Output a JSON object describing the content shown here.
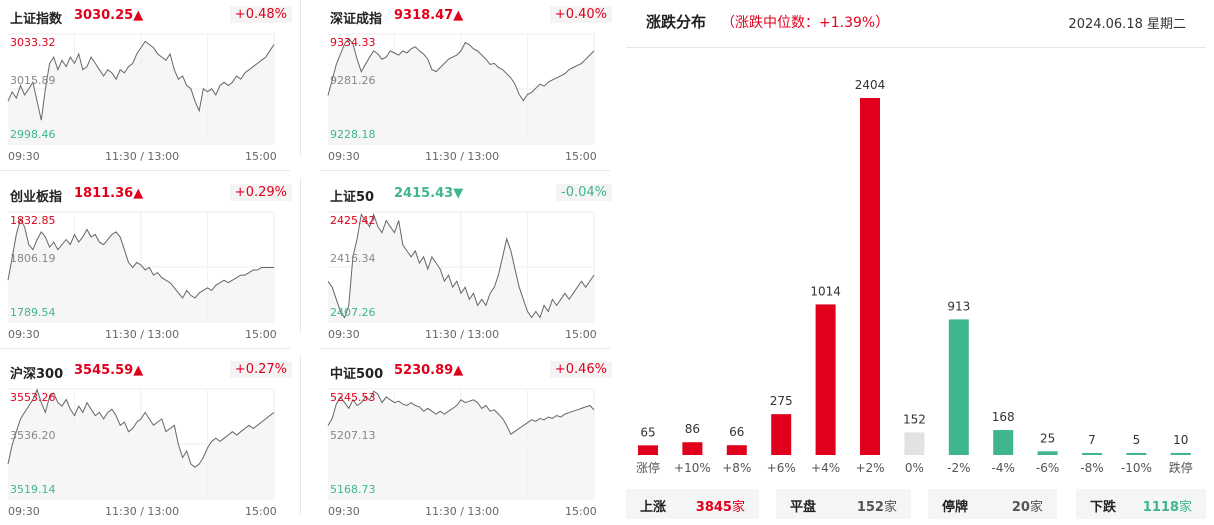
{
  "colors": {
    "up": "#e0001b",
    "down": "#3fb68b",
    "flat": "#e2e2e2",
    "line": "#666666"
  },
  "indices": [
    {
      "name": "上证指数",
      "value": "3030.25",
      "arrow": "▲",
      "change_pct": "+0.48%",
      "dir": "up",
      "y_high": "3033.32",
      "y_mid": "3015.89",
      "y_low": "2998.46",
      "x_start": "09:30",
      "x_mid": "11:30 / 13:00",
      "x_end": "15:00",
      "series": [
        3012,
        3015,
        3013,
        3017,
        3014,
        3016,
        3018,
        3012,
        3006,
        3016,
        3024,
        3026,
        3022,
        3025,
        3023,
        3026,
        3024,
        3027,
        3022,
        3023,
        3026,
        3024,
        3022,
        3020,
        3022,
        3021,
        3019,
        3022,
        3021,
        3023,
        3024,
        3027,
        3029,
        3031,
        3030,
        3029,
        3027,
        3026,
        3025,
        3027,
        3022,
        3019,
        3020,
        3017,
        3016,
        3012,
        3009,
        3016,
        3015,
        3016,
        3014,
        3017,
        3018,
        3017,
        3018,
        3020,
        3019,
        3021,
        3022,
        3023,
        3024,
        3025,
        3026,
        3028,
        3030
      ]
    },
    {
      "name": "深证成指",
      "value": "9318.47",
      "arrow": "▲",
      "change_pct": "+0.40%",
      "dir": "up",
      "y_high": "9334.33",
      "y_mid": "9281.26",
      "y_low": "9228.18",
      "x_start": "09:30",
      "x_mid": "11:30 / 13:00",
      "x_end": "15:00",
      "series": [
        9275,
        9290,
        9305,
        9315,
        9325,
        9330,
        9325,
        9310,
        9298,
        9305,
        9312,
        9318,
        9315,
        9310,
        9312,
        9318,
        9316,
        9314,
        9318,
        9316,
        9320,
        9322,
        9318,
        9315,
        9310,
        9300,
        9298,
        9302,
        9306,
        9310,
        9312,
        9314,
        9318,
        9326,
        9324,
        9320,
        9318,
        9314,
        9310,
        9305,
        9306,
        9302,
        9300,
        9296,
        9292,
        9286,
        9276,
        9270,
        9276,
        9278,
        9282,
        9286,
        9284,
        9288,
        9290,
        9292,
        9294,
        9296,
        9300,
        9302,
        9304,
        9306,
        9310,
        9314,
        9318
      ]
    },
    {
      "name": "创业板指",
      "value": "1811.36",
      "arrow": "▲",
      "change_pct": "+0.29%",
      "dir": "up",
      "y_high": "1832.85",
      "y_mid": "1806.19",
      "y_low": "1789.54",
      "x_start": "09:30",
      "x_mid": "11:30 / 13:00",
      "x_end": "15:00",
      "series": [
        1806,
        1815,
        1824,
        1830,
        1827,
        1820,
        1818,
        1822,
        1825,
        1823,
        1819,
        1821,
        1818,
        1820,
        1822,
        1820,
        1824,
        1821,
        1823,
        1826,
        1823,
        1824,
        1821,
        1820,
        1822,
        1824,
        1825,
        1823,
        1818,
        1813,
        1811,
        1813,
        1812,
        1810,
        1811,
        1808,
        1809,
        1807,
        1806,
        1805,
        1803,
        1801,
        1799,
        1802,
        1800,
        1799,
        1801,
        1802,
        1803,
        1802,
        1804,
        1805,
        1806,
        1805,
        1806,
        1807,
        1808,
        1808,
        1809,
        1810,
        1810,
        1811,
        1811,
        1811,
        1811
      ]
    },
    {
      "name": "上证50",
      "value": "2415.43",
      "arrow": "▼",
      "change_pct": "-0.04%",
      "dir": "down",
      "y_high": "2425.42",
      "y_mid": "2416.34",
      "y_low": "2407.26",
      "x_start": "09:30",
      "x_mid": "11:30 / 13:00",
      "x_end": "15:00",
      "series": [
        2414,
        2413,
        2411,
        2409,
        2408,
        2410,
        2418,
        2421,
        2425,
        2424,
        2423,
        2425,
        2423,
        2422,
        2424,
        2423,
        2422,
        2424,
        2420,
        2419,
        2418,
        2419,
        2417,
        2418,
        2416,
        2418,
        2417,
        2416,
        2414,
        2415,
        2413,
        2414,
        2412,
        2413,
        2411,
        2412,
        2410,
        2411,
        2410,
        2412,
        2413,
        2415,
        2418,
        2421,
        2419,
        2416,
        2413,
        2411,
        2409,
        2408,
        2409,
        2408,
        2410,
        2409,
        2411,
        2410,
        2411,
        2412,
        2411,
        2412,
        2413,
        2414,
        2413,
        2414,
        2415
      ]
    },
    {
      "name": "沪深300",
      "value": "3545.59",
      "arrow": "▲",
      "change_pct": "+0.27%",
      "dir": "up",
      "y_high": "3553.26",
      "y_mid": "3536.20",
      "y_low": "3519.14",
      "x_start": "09:30",
      "x_mid": "11:30 / 13:00",
      "x_end": "15:00",
      "series": [
        3530,
        3536,
        3540,
        3544,
        3546,
        3548,
        3550,
        3553,
        3549,
        3546,
        3551,
        3552,
        3549,
        3548,
        3550,
        3547,
        3545,
        3548,
        3546,
        3549,
        3547,
        3545,
        3546,
        3544,
        3546,
        3547,
        3545,
        3542,
        3543,
        3540,
        3541,
        3543,
        3544,
        3546,
        3544,
        3542,
        3543,
        3544,
        3540,
        3541,
        3542,
        3536,
        3532,
        3534,
        3530,
        3529,
        3530,
        3532,
        3535,
        3537,
        3538,
        3537,
        3538,
        3539,
        3540,
        3539,
        3540,
        3541,
        3542,
        3541,
        3542,
        3543,
        3544,
        3545,
        3546
      ]
    },
    {
      "name": "中证500",
      "value": "5230.89",
      "arrow": "▲",
      "change_pct": "+0.46%",
      "dir": "up",
      "y_high": "5245.53",
      "y_mid": "5207.13",
      "y_low": "5168.73",
      "x_start": "09:30",
      "x_mid": "11:30 / 13:00",
      "x_end": "15:00",
      "series": [
        5220,
        5225,
        5235,
        5240,
        5236,
        5232,
        5238,
        5234,
        5236,
        5240,
        5238,
        5244,
        5242,
        5236,
        5240,
        5238,
        5236,
        5237,
        5235,
        5234,
        5236,
        5234,
        5233,
        5230,
        5232,
        5230,
        5228,
        5230,
        5228,
        5230,
        5232,
        5234,
        5238,
        5236,
        5237,
        5238,
        5236,
        5232,
        5234,
        5230,
        5231,
        5228,
        5225,
        5220,
        5214,
        5216,
        5218,
        5220,
        5222,
        5224,
        5223,
        5225,
        5224,
        5226,
        5225,
        5227,
        5226,
        5228,
        5229,
        5230,
        5231,
        5232,
        5233,
        5234,
        5231
      ]
    }
  ],
  "distribution": {
    "title": "涨跌分布",
    "subtitle": "（涨跌中位数：+1.39%）",
    "date": "2024.06.18 星期二",
    "summary": [
      {
        "label": "上涨",
        "count": "3845",
        "unit": "家",
        "dir": "up"
      },
      {
        "label": "平盘",
        "count": "152",
        "unit": "家",
        "dir": "neu"
      },
      {
        "label": "停牌",
        "count": "20",
        "unit": "家",
        "dir": "neu"
      },
      {
        "label": "下跌",
        "count": "1118",
        "unit": "家",
        "dir": "down"
      }
    ]
  },
  "chart_data": {
    "type": "bar",
    "categories": [
      "涨停",
      "+10%",
      "+8%",
      "+6%",
      "+4%",
      "+2%",
      "0%",
      "-2%",
      "-4%",
      "-6%",
      "-8%",
      "-10%",
      "跌停"
    ],
    "values": [
      65,
      86,
      66,
      275,
      1014,
      2404,
      152,
      913,
      168,
      25,
      7,
      5,
      10
    ],
    "bar_dirs": [
      "up",
      "up",
      "up",
      "up",
      "up",
      "up",
      "flat",
      "down",
      "down",
      "down",
      "down",
      "down",
      "down"
    ],
    "title": "涨跌分布",
    "xlabel": "",
    "ylabel": "",
    "ylim": [
      0,
      2404
    ]
  }
}
